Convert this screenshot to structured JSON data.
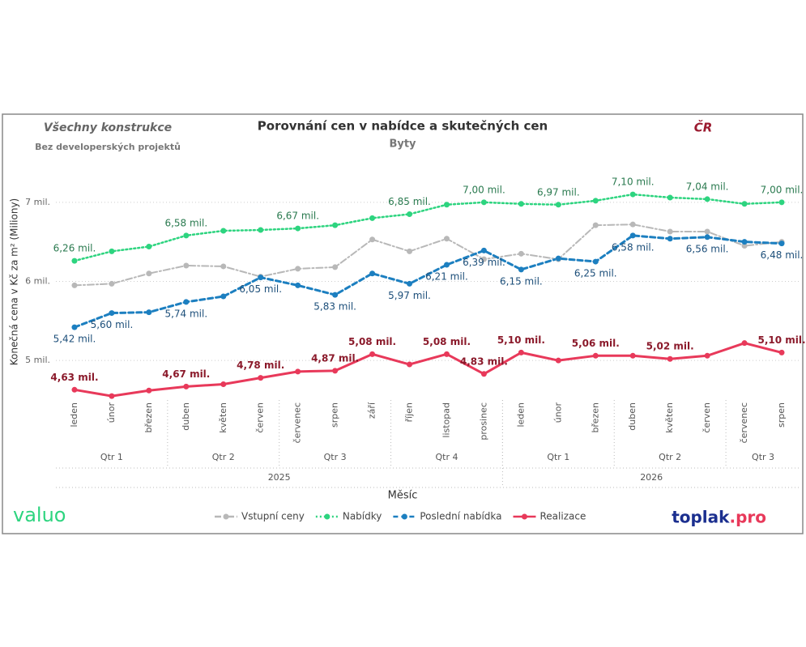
{
  "header": {
    "left_title": "Všechny konstrukce",
    "left_subtitle": "Bez developerských projektů",
    "region": "ČR"
  },
  "logos": {
    "left": "valuo",
    "right_main": "toplak",
    "right_suffix": ".pro"
  },
  "chart_data": {
    "type": "line",
    "title": "Porovnání cen v nabídce a skutečných cen",
    "subtitle": "Byty",
    "x_label": "Měsíc",
    "y_label": "Konečná cena v Kč za m² (Miliony)",
    "categories": [
      "leden",
      "únor",
      "březen",
      "duben",
      "květen",
      "červen",
      "červenec",
      "srpen",
      "září",
      "říjen",
      "listopad",
      "prosinec",
      "leden",
      "únor",
      "březen",
      "duben",
      "květen",
      "červen",
      "červenec",
      "srpen"
    ],
    "quarters": [
      "Qtr 1",
      "Qtr 1",
      "Qtr 1",
      "Qtr 2",
      "Qtr 2",
      "Qtr 2",
      "Qtr 3",
      "Qtr 3",
      "Qtr 3",
      "Qtr 4",
      "Qtr 4",
      "Qtr 4",
      "Qtr 1",
      "Qtr 1",
      "Qtr 1",
      "Qtr 2",
      "Qtr 2",
      "Qtr 2",
      "Qtr 3",
      "Qtr 3"
    ],
    "years": [
      "2025",
      "2025",
      "2025",
      "2025",
      "2025",
      "2025",
      "2025",
      "2025",
      "2025",
      "2025",
      "2025",
      "2025",
      "2026",
      "2026",
      "2026",
      "2026",
      "2026",
      "2026",
      "2026",
      "2026"
    ],
    "ylim": [
      4.5,
      7.5
    ],
    "yticks": [
      {
        "value": 5,
        "label": "5 mil."
      },
      {
        "value": 6,
        "label": "6 mil."
      },
      {
        "value": 7,
        "label": "7 mil."
      }
    ],
    "grid": true,
    "legend": "bottom",
    "series": [
      {
        "name": "Vstupní ceny",
        "color": "#b8b8b8",
        "line_style": "dashdot",
        "label_side": "above",
        "values": [
          5.95,
          5.97,
          6.1,
          6.2,
          6.19,
          6.06,
          6.16,
          6.18,
          6.53,
          6.38,
          6.54,
          6.28,
          6.35,
          6.28,
          6.71,
          6.72,
          6.63,
          6.63,
          6.45,
          6.5
        ],
        "value_labels": [
          null,
          null,
          null,
          null,
          null,
          null,
          null,
          null,
          null,
          null,
          null,
          null,
          null,
          null,
          null,
          null,
          null,
          null,
          null,
          null
        ]
      },
      {
        "name": "Nabídky",
        "color": "#2dd47f",
        "line_style": "dotted",
        "label_side": "above",
        "values": [
          6.26,
          6.38,
          6.44,
          6.58,
          6.64,
          6.65,
          6.67,
          6.71,
          6.8,
          6.85,
          6.97,
          7.0,
          6.98,
          6.97,
          7.02,
          7.1,
          7.06,
          7.04,
          6.98,
          7.0
        ],
        "value_labels": [
          "6,26 mil.",
          null,
          null,
          "6,58 mil.",
          null,
          null,
          "6,67 mil.",
          null,
          null,
          "6,85 mil.",
          null,
          "7,00 mil.",
          null,
          "6,97 mil.",
          null,
          "7,10 mil.",
          null,
          "7,04 mil.",
          null,
          "7,00 mil."
        ]
      },
      {
        "name": "Poslední nabídka",
        "color": "#1c7fc0",
        "line_style": "dashed",
        "label_side": "below",
        "values": [
          5.42,
          5.6,
          5.61,
          5.74,
          5.81,
          6.05,
          5.95,
          5.83,
          6.1,
          5.97,
          6.21,
          6.39,
          6.15,
          6.29,
          6.25,
          6.58,
          6.54,
          6.56,
          6.5,
          6.48
        ],
        "value_labels": [
          "5,42 mil.",
          "5,60 mil.",
          null,
          "5,74 mil.",
          null,
          "6,05 mil.",
          null,
          "5,83 mil.",
          null,
          "5,97 mil.",
          "6,21 mil.",
          "6,39 mil.",
          "6,15 mil.",
          null,
          "6,25 mil.",
          "6,58 mil.",
          null,
          "6,56 mil.",
          null,
          "6,48 mil."
        ]
      },
      {
        "name": "Realizace",
        "color": "#e8395a",
        "line_style": "solid",
        "label_side": "above",
        "values": [
          4.63,
          4.55,
          4.62,
          4.67,
          4.7,
          4.78,
          4.86,
          4.87,
          5.08,
          4.95,
          5.08,
          4.83,
          5.1,
          5.0,
          5.06,
          5.06,
          5.02,
          5.06,
          5.22,
          5.1
        ],
        "value_labels": [
          "4,63 mil.",
          null,
          null,
          "4,67 mil.",
          null,
          "4,78 mil.",
          null,
          "4,87 mil.",
          "5,08 mil.",
          null,
          "5,08 mil.",
          "4,83 mil.",
          "5,10 mil.",
          null,
          "5,06 mil.",
          null,
          "5,02 mil.",
          null,
          null,
          "5,10 mil."
        ]
      }
    ]
  }
}
